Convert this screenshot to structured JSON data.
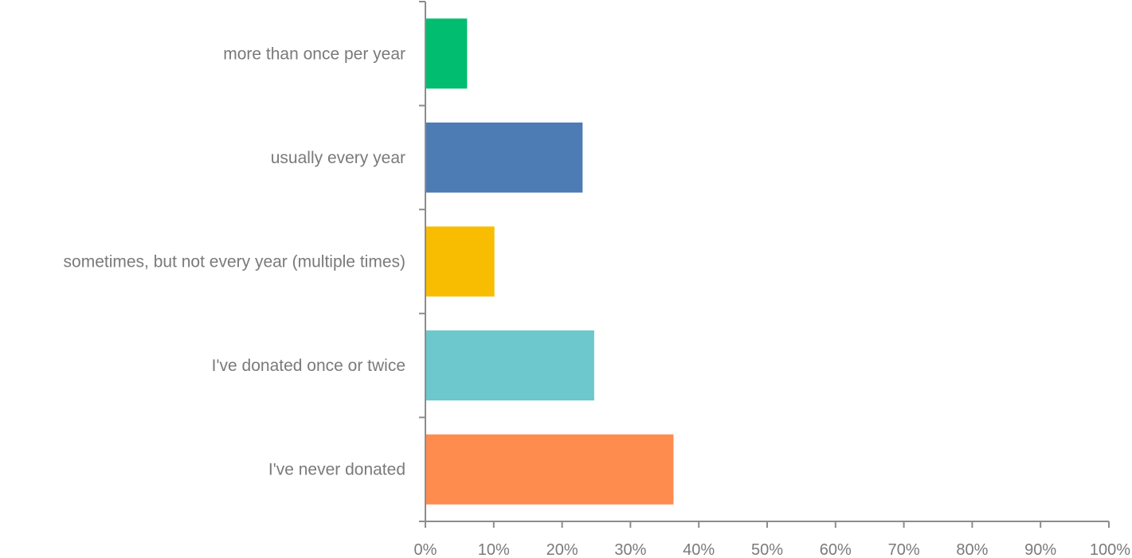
{
  "chart_data": {
    "type": "bar",
    "orientation": "horizontal",
    "title": "",
    "xlabel": "",
    "ylabel": "",
    "xlim": [
      0,
      1
    ],
    "x_ticks": [
      0,
      0.1,
      0.2,
      0.3,
      0.4,
      0.5,
      0.6,
      0.7,
      0.8,
      0.9,
      1
    ],
    "x_tick_labels": [
      "0%",
      "10%",
      "20%",
      "30%",
      "40%",
      "50%",
      "60%",
      "70%",
      "80%",
      "90%",
      "100%"
    ],
    "grid": false,
    "legend": "none",
    "categories": [
      "more than once per year",
      "usually every year",
      "sometimes, but not every year (multiple times)",
      "I've donated once or twice",
      "I've never donated"
    ],
    "values": [
      0.061,
      0.23,
      0.101,
      0.247,
      0.363
    ],
    "colors": [
      "#00bd6f",
      "#4d7bb4",
      "#f8bd00",
      "#6cc8cc",
      "#ff8c4f"
    ]
  }
}
